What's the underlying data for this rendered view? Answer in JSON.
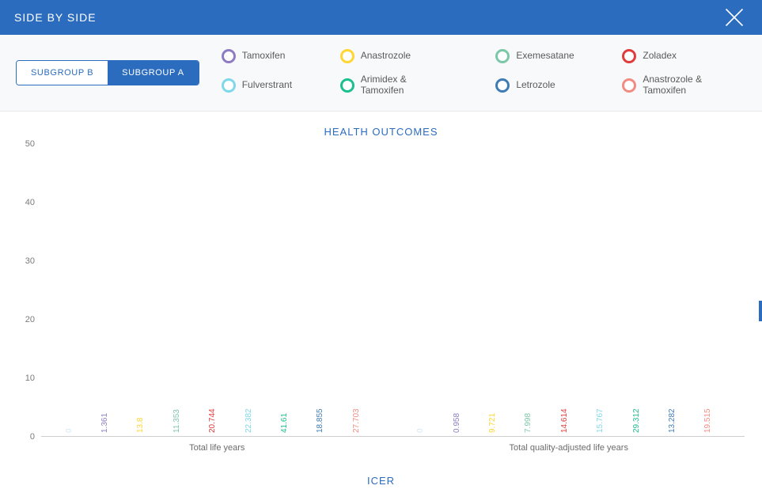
{
  "titlebar": {
    "title": "SIDE BY SIDE"
  },
  "toggle": {
    "options": [
      "SUBGROUP B",
      "SUBGROUP A"
    ],
    "active_index": 0
  },
  "series": [
    {
      "id": "tamoxifen",
      "label": "Tamoxifen",
      "color": "#8e7cc3"
    },
    {
      "id": "anastrozole",
      "label": "Anastrozole",
      "color": "#ffd633"
    },
    {
      "id": "exemesatane",
      "label": "Exemesatane",
      "color": "#7cc7a8"
    },
    {
      "id": "zoladex",
      "label": "Zoladex",
      "color": "#e23b3b"
    },
    {
      "id": "fulverstrant",
      "label": "Fulverstrant",
      "color": "#7fd8e8"
    },
    {
      "id": "arimidex",
      "label": "Arimidex & Tamoxifen",
      "color": "#1dbf8e"
    },
    {
      "id": "letrozole",
      "label": "Letrozole",
      "color": "#3f7cb5"
    },
    {
      "id": "ana_tam",
      "label": "Anastrozole & Tamoxifen",
      "color": "#f28c82"
    }
  ],
  "legend_order": [
    "tamoxifen",
    "anastrozole",
    "exemesatane",
    "zoladex",
    "fulverstrant",
    "arimidex",
    "letrozole",
    "ana_tam"
  ],
  "bar_order": [
    "placebo",
    "tamoxifen",
    "anastrozole",
    "exemesatane",
    "zoladex",
    "fulverstrant",
    "arimidex",
    "letrozole",
    "ana_tam"
  ],
  "extra_series": {
    "placebo": {
      "color": "#cfe8f5"
    }
  },
  "chart": {
    "title": "HEALTH OUTCOMES",
    "type": "bar",
    "ylim": [
      0,
      50
    ],
    "ytick_step": 10,
    "y_ticks": [
      0,
      10,
      20,
      30,
      40,
      50
    ],
    "background_color": "#ffffff",
    "axis_color": "#cfcfcf",
    "tick_label_color": "#7a7a7a",
    "tick_fontsize": 11,
    "bar_label_fontsize": 10,
    "groups": [
      {
        "name": "Total life years",
        "values": {
          "placebo": 0,
          "tamoxifen": 1.361,
          "anastrozole": 13.8,
          "exemesatane": 11.353,
          "zoladex": 20.744,
          "fulverstrant": 22.382,
          "arimidex": 41.61,
          "letrozole": 18.855,
          "ana_tam": 27.703
        }
      },
      {
        "name": "Total quality-adjusted life years",
        "values": {
          "placebo": 0,
          "tamoxifen": 0.958,
          "anastrozole": 9.721,
          "exemesatane": 7.998,
          "zoladex": 14.614,
          "fulverstrant": 15.767,
          "arimidex": 29.312,
          "letrozole": 13.282,
          "ana_tam": 19.515
        }
      }
    ]
  },
  "next_section_title": "ICER",
  "colors": {
    "brand": "#2b6cbf",
    "header_bg": "#f8f9fa"
  }
}
